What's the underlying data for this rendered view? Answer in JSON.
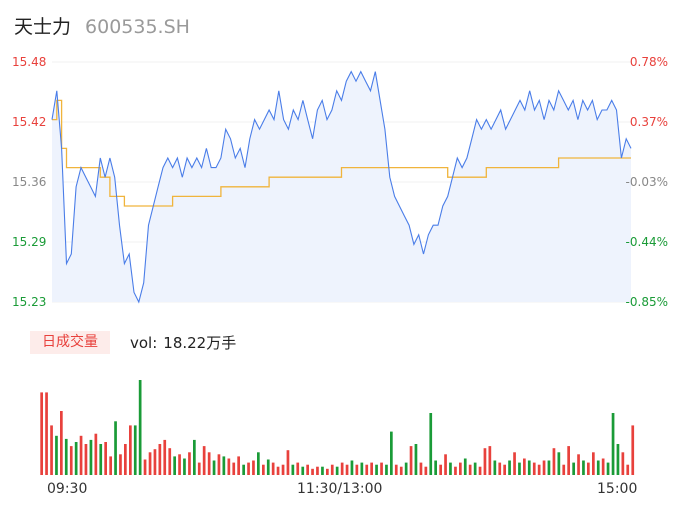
{
  "header": {
    "name": "天士力",
    "code": "600535.SH"
  },
  "colors": {
    "up": "#e8413c",
    "down": "#1a9b37",
    "price_line": "#4a7de8",
    "avg_line": "#f0b43c",
    "fill": "#eef3fd"
  },
  "chart_data": [
    {
      "type": "line",
      "title": "",
      "ylim": [
        15.23,
        15.48
      ],
      "y_ticks_left": [
        "15.48",
        "15.42",
        "15.36",
        "15.29",
        "15.23"
      ],
      "y_ticks_right": [
        "0.78%",
        "0.37%",
        "-0.03%",
        "-0.44%",
        "-0.85%"
      ],
      "x_ticks": [
        "09:30",
        "11:30/13:00",
        "15:00"
      ],
      "series": [
        {
          "points": [
            [
              0,
              15.42
            ],
            [
              1,
              15.45
            ],
            [
              2,
              15.39
            ],
            [
              3,
              15.27
            ],
            [
              4,
              15.28
            ],
            [
              5,
              15.35
            ],
            [
              6,
              15.37
            ],
            [
              7,
              15.36
            ],
            [
              8,
              15.35
            ],
            [
              9,
              15.34
            ],
            [
              10,
              15.38
            ],
            [
              11,
              15.36
            ],
            [
              12,
              15.38
            ],
            [
              13,
              15.36
            ],
            [
              14,
              15.31
            ],
            [
              15,
              15.27
            ],
            [
              16,
              15.28
            ],
            [
              17,
              15.24
            ],
            [
              18,
              15.23
            ],
            [
              19,
              15.25
            ],
            [
              20,
              15.31
            ],
            [
              21,
              15.33
            ],
            [
              22,
              15.35
            ],
            [
              23,
              15.37
            ],
            [
              24,
              15.38
            ],
            [
              25,
              15.37
            ],
            [
              26,
              15.38
            ],
            [
              27,
              15.36
            ],
            [
              28,
              15.38
            ],
            [
              29,
              15.37
            ],
            [
              30,
              15.38
            ],
            [
              31,
              15.37
            ],
            [
              32,
              15.39
            ],
            [
              33,
              15.37
            ],
            [
              34,
              15.37
            ],
            [
              35,
              15.38
            ],
            [
              36,
              15.41
            ],
            [
              37,
              15.4
            ],
            [
              38,
              15.38
            ],
            [
              39,
              15.39
            ],
            [
              40,
              15.37
            ],
            [
              41,
              15.4
            ],
            [
              42,
              15.42
            ],
            [
              43,
              15.41
            ],
            [
              44,
              15.42
            ],
            [
              45,
              15.43
            ],
            [
              46,
              15.42
            ],
            [
              47,
              15.45
            ],
            [
              48,
              15.42
            ],
            [
              49,
              15.41
            ],
            [
              50,
              15.43
            ],
            [
              51,
              15.42
            ],
            [
              52,
              15.44
            ],
            [
              53,
              15.42
            ],
            [
              54,
              15.4
            ],
            [
              55,
              15.43
            ],
            [
              56,
              15.44
            ],
            [
              57,
              15.42
            ],
            [
              58,
              15.43
            ],
            [
              59,
              15.45
            ],
            [
              60,
              15.44
            ],
            [
              61,
              15.46
            ],
            [
              62,
              15.47
            ],
            [
              63,
              15.46
            ],
            [
              64,
              15.47
            ],
            [
              65,
              15.46
            ],
            [
              66,
              15.45
            ],
            [
              67,
              15.47
            ],
            [
              68,
              15.44
            ],
            [
              69,
              15.41
            ],
            [
              70,
              15.36
            ],
            [
              71,
              15.34
            ],
            [
              72,
              15.33
            ],
            [
              73,
              15.32
            ],
            [
              74,
              15.31
            ],
            [
              75,
              15.29
            ],
            [
              76,
              15.3
            ],
            [
              77,
              15.28
            ],
            [
              78,
              15.3
            ],
            [
              79,
              15.31
            ],
            [
              80,
              15.31
            ],
            [
              81,
              15.33
            ],
            [
              82,
              15.34
            ],
            [
              83,
              15.36
            ],
            [
              84,
              15.38
            ],
            [
              85,
              15.37
            ],
            [
              86,
              15.38
            ],
            [
              87,
              15.4
            ],
            [
              88,
              15.42
            ],
            [
              89,
              15.41
            ],
            [
              90,
              15.42
            ],
            [
              91,
              15.41
            ],
            [
              92,
              15.42
            ],
            [
              93,
              15.43
            ],
            [
              94,
              15.41
            ],
            [
              95,
              15.42
            ],
            [
              96,
              15.43
            ],
            [
              97,
              15.44
            ],
            [
              98,
              15.43
            ],
            [
              99,
              15.45
            ],
            [
              100,
              15.43
            ],
            [
              101,
              15.44
            ],
            [
              102,
              15.42
            ],
            [
              103,
              15.44
            ],
            [
              104,
              15.43
            ],
            [
              105,
              15.45
            ],
            [
              106,
              15.44
            ],
            [
              107,
              15.43
            ],
            [
              108,
              15.44
            ],
            [
              109,
              15.42
            ],
            [
              110,
              15.44
            ],
            [
              111,
              15.43
            ],
            [
              112,
              15.44
            ],
            [
              113,
              15.42
            ],
            [
              114,
              15.43
            ],
            [
              115,
              15.43
            ],
            [
              116,
              15.44
            ],
            [
              117,
              15.43
            ],
            [
              118,
              15.38
            ],
            [
              119,
              15.4
            ],
            [
              120,
              15.39
            ]
          ]
        },
        {
          "points": [
            [
              0,
              15.42
            ],
            [
              1,
              15.44
            ],
            [
              2,
              15.39
            ],
            [
              3,
              15.37
            ],
            [
              8,
              15.37
            ],
            [
              10,
              15.36
            ],
            [
              12,
              15.34
            ],
            [
              15,
              15.33
            ],
            [
              20,
              15.33
            ],
            [
              25,
              15.34
            ],
            [
              30,
              15.34
            ],
            [
              35,
              15.35
            ],
            [
              40,
              15.35
            ],
            [
              45,
              15.36
            ],
            [
              50,
              15.36
            ],
            [
              55,
              15.36
            ],
            [
              60,
              15.37
            ],
            [
              65,
              15.37
            ],
            [
              70,
              15.37
            ],
            [
              75,
              15.37
            ],
            [
              80,
              15.37
            ],
            [
              82,
              15.36
            ],
            [
              85,
              15.36
            ],
            [
              90,
              15.37
            ],
            [
              95,
              15.37
            ],
            [
              100,
              15.37
            ],
            [
              105,
              15.38
            ],
            [
              110,
              15.38
            ],
            [
              115,
              15.38
            ],
            [
              120,
              15.38
            ]
          ]
        }
      ]
    },
    {
      "type": "bar",
      "title": "",
      "tab_label": "日成交量",
      "readout_label": "vol:",
      "readout_value": "18.22万手",
      "values": [
        [
          80,
          1
        ],
        [
          80,
          1
        ],
        [
          48,
          1
        ],
        [
          38,
          0
        ],
        [
          62,
          1
        ],
        [
          35,
          0
        ],
        [
          28,
          1
        ],
        [
          32,
          0
        ],
        [
          38,
          1
        ],
        [
          30,
          1
        ],
        [
          34,
          0
        ],
        [
          40,
          1
        ],
        [
          30,
          0
        ],
        [
          32,
          1
        ],
        [
          18,
          1
        ],
        [
          52,
          0
        ],
        [
          20,
          1
        ],
        [
          30,
          1
        ],
        [
          48,
          1
        ],
        [
          48,
          0
        ],
        [
          92,
          0
        ],
        [
          15,
          1
        ],
        [
          22,
          1
        ],
        [
          25,
          1
        ],
        [
          30,
          1
        ],
        [
          34,
          1
        ],
        [
          26,
          1
        ],
        [
          18,
          0
        ],
        [
          20,
          1
        ],
        [
          16,
          0
        ],
        [
          22,
          1
        ],
        [
          34,
          0
        ],
        [
          12,
          1
        ],
        [
          28,
          1
        ],
        [
          22,
          1
        ],
        [
          14,
          0
        ],
        [
          20,
          1
        ],
        [
          18,
          0
        ],
        [
          16,
          1
        ],
        [
          12,
          1
        ],
        [
          18,
          1
        ],
        [
          10,
          0
        ],
        [
          12,
          1
        ],
        [
          14,
          1
        ],
        [
          22,
          0
        ],
        [
          10,
          1
        ],
        [
          15,
          0
        ],
        [
          12,
          1
        ],
        [
          8,
          1
        ],
        [
          10,
          1
        ],
        [
          24,
          1
        ],
        [
          10,
          0
        ],
        [
          12,
          1
        ],
        [
          8,
          0
        ],
        [
          10,
          1
        ],
        [
          6,
          1
        ],
        [
          8,
          1
        ],
        [
          8,
          0
        ],
        [
          6,
          1
        ],
        [
          10,
          1
        ],
        [
          8,
          0
        ],
        [
          12,
          1
        ],
        [
          10,
          1
        ],
        [
          14,
          0
        ],
        [
          10,
          1
        ],
        [
          12,
          0
        ],
        [
          10,
          1
        ],
        [
          12,
          1
        ],
        [
          10,
          0
        ],
        [
          12,
          1
        ],
        [
          10,
          0
        ],
        [
          42,
          0
        ],
        [
          10,
          1
        ],
        [
          8,
          1
        ],
        [
          12,
          0
        ],
        [
          28,
          1
        ],
        [
          30,
          0
        ],
        [
          12,
          1
        ],
        [
          8,
          1
        ],
        [
          60,
          0
        ],
        [
          14,
          0
        ],
        [
          10,
          1
        ],
        [
          20,
          1
        ],
        [
          12,
          0
        ],
        [
          8,
          1
        ],
        [
          12,
          1
        ],
        [
          16,
          0
        ],
        [
          10,
          1
        ],
        [
          12,
          0
        ],
        [
          8,
          1
        ],
        [
          26,
          1
        ],
        [
          28,
          1
        ],
        [
          14,
          0
        ],
        [
          12,
          1
        ],
        [
          10,
          1
        ],
        [
          14,
          0
        ],
        [
          22,
          1
        ],
        [
          12,
          0
        ],
        [
          16,
          1
        ],
        [
          14,
          0
        ],
        [
          12,
          1
        ],
        [
          10,
          1
        ],
        [
          14,
          1
        ],
        [
          14,
          0
        ],
        [
          26,
          1
        ],
        [
          22,
          0
        ],
        [
          10,
          1
        ],
        [
          28,
          1
        ],
        [
          12,
          0
        ],
        [
          20,
          1
        ],
        [
          14,
          0
        ],
        [
          12,
          1
        ],
        [
          22,
          1
        ],
        [
          14,
          0
        ],
        [
          16,
          1
        ],
        [
          12,
          0
        ],
        [
          60,
          0
        ],
        [
          30,
          0
        ],
        [
          22,
          1
        ],
        [
          10,
          1
        ],
        [
          48,
          1
        ]
      ]
    }
  ]
}
